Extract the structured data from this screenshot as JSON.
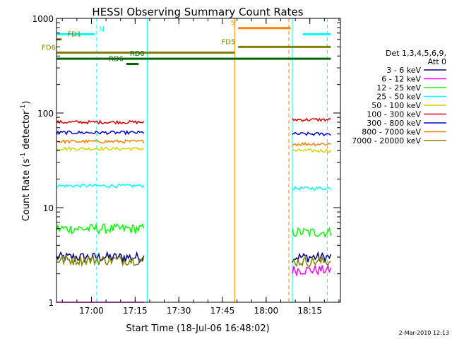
{
  "chart_data": {
    "type": "line",
    "title": "HESSI Observing Summary Count Rates",
    "xlabel": "Start Time (18-Jul-06 16:48:02)",
    "ylabel_main": "Count Rate (s",
    "ylabel_sup1": "-1",
    "ylabel_mid": " detector",
    "ylabel_sup2": "-1",
    "ylabel_end": ")",
    "yscale": "log",
    "ylim": [
      1,
      1000
    ],
    "xlim": [
      16.8,
      18.425
    ],
    "x_ticks": [
      {
        "x": 17.0,
        "label": "17:00"
      },
      {
        "x": 17.25,
        "label": "17:15"
      },
      {
        "x": 17.5,
        "label": "17:30"
      },
      {
        "x": 17.75,
        "label": "17:45"
      },
      {
        "x": 18.0,
        "label": "18:00"
      },
      {
        "x": 18.25,
        "label": "18:15"
      }
    ],
    "y_ticks": [
      {
        "y": 1,
        "label": "1"
      },
      {
        "y": 10,
        "label": "10"
      },
      {
        "y": 100,
        "label": "100"
      },
      {
        "y": 1000,
        "label": "1000"
      }
    ],
    "legend_header": [
      "Det 1,3,4,5,6,9,",
      "Att 0"
    ],
    "legend_placement": "right",
    "series": [
      {
        "name": "3 - 6 keV",
        "color": "#000080"
      },
      {
        "name": "6 - 12 keV",
        "color": "#ff00ff"
      },
      {
        "name": "12 - 25 keV",
        "color": "#00ff00"
      },
      {
        "name": "25 - 50 keV",
        "color": "#00ffff"
      },
      {
        "name": "50 - 100 keV",
        "color": "#d4d400"
      },
      {
        "name": "100 - 300 keV",
        "color": "#e00000"
      },
      {
        "name": "300 - 800 keV",
        "color": "#0000d0"
      },
      {
        "name": "800 - 7000 keV",
        "color": "#ff8000"
      },
      {
        "name": "7000 - 20000 keV",
        "color": "#808000"
      }
    ],
    "segments": [
      {
        "start": 16.8,
        "end": 17.3
      },
      {
        "start": 18.15,
        "end": 18.37
      }
    ],
    "segment_values": [
      [
        3,
        0.9,
        6,
        17,
        42,
        80,
        62,
        50,
        2.8
      ],
      [
        3,
        2.2,
        5.5,
        16,
        40,
        85,
        60,
        47,
        2.7
      ]
    ],
    "flags": [
      {
        "label": "N",
        "x_start": 16.8,
        "x_end": 17.02,
        "y": 680,
        "color": "#00ffff"
      },
      {
        "label": "",
        "x_start": 18.21,
        "x_end": 18.37,
        "y": 680,
        "color": "#00ffff"
      },
      {
        "label": "S",
        "x_start": 17.84,
        "x_end": 18.14,
        "y": 790,
        "color": "#ff8000"
      },
      {
        "label": "FD1",
        "x_start": 16.8,
        "x_end": 16.83,
        "y": 600,
        "color": "#808000"
      },
      {
        "label": "FD6",
        "x_start": 16.8,
        "x_end": 17.82,
        "y": 435,
        "color": "#808000"
      },
      {
        "label": "FD5",
        "x_start": 17.84,
        "x_end": 18.37,
        "y": 500,
        "color": "#808000"
      },
      {
        "label": "RD0",
        "x_start": 16.8,
        "x_end": 18.37,
        "y": 375,
        "color": "#006400"
      },
      {
        "label": "RD6",
        "x_start": 17.2,
        "x_end": 17.27,
        "y": 330,
        "color": "#006400"
      }
    ],
    "vertical_markers": [
      {
        "x": 16.8,
        "style": "solid",
        "color": "#00ffff"
      },
      {
        "x": 17.03,
        "style": "dashed",
        "color": "#00ffff"
      },
      {
        "x": 17.32,
        "style": "solid",
        "color": "#00ffff"
      },
      {
        "x": 17.82,
        "style": "solid",
        "color": "#ff8000"
      },
      {
        "x": 18.13,
        "style": "dashed",
        "color": "#ff8000"
      },
      {
        "x": 18.15,
        "style": "solid",
        "color": "#00ffff"
      },
      {
        "x": 18.35,
        "style": "dashed",
        "color": "#00ffff"
      }
    ],
    "timestamp": "2-Mar-2010 12:13"
  }
}
